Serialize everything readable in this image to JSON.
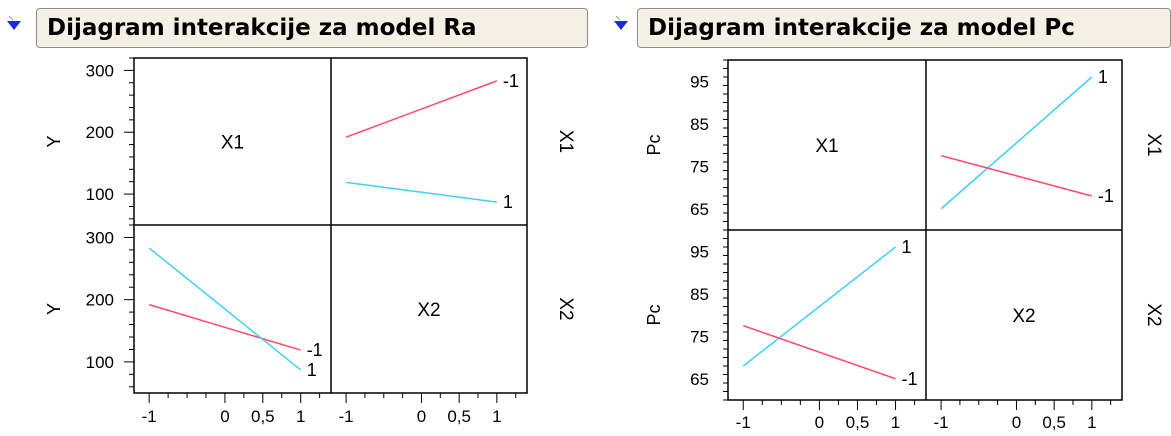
{
  "colors": {
    "red": "#ff4a6e",
    "cyan": "#3fd0ee",
    "frame": "#000000"
  },
  "icons": {
    "disclosure": "disclosure-triangle-icon"
  },
  "chart_data": [
    {
      "type": "line",
      "title": "Dijagram interakcije za model Ra",
      "factors": [
        "X1",
        "X2"
      ],
      "ylabel": "Y",
      "x_ticks": [
        "-1",
        "0",
        "0,5",
        "1"
      ],
      "x_tick_values": [
        -1,
        0,
        0.5,
        1
      ],
      "xlim": [
        -1.2,
        1.4
      ],
      "y_ticks": [
        "100",
        "200",
        "300"
      ],
      "y_tick_values": [
        100,
        200,
        300
      ],
      "ylim": [
        50,
        320
      ],
      "cells": [
        {
          "row": "X1",
          "col": "X2",
          "series": [
            {
              "name": "-1",
              "color": "red",
              "x": [
                -1,
                1
              ],
              "y": [
                192,
                283
              ]
            },
            {
              "name": "1",
              "color": "cyan",
              "x": [
                -1,
                1
              ],
              "y": [
                119,
                87
              ]
            }
          ]
        },
        {
          "row": "X2",
          "col": "X1",
          "series": [
            {
              "name": "-1",
              "color": "red",
              "x": [
                -1,
                1
              ],
              "y": [
                192,
                119
              ]
            },
            {
              "name": "1",
              "color": "cyan",
              "x": [
                -1,
                1
              ],
              "y": [
                283,
                87
              ]
            }
          ]
        }
      ]
    },
    {
      "type": "line",
      "title": "Dijagram interakcije za model Pc",
      "factors": [
        "X1",
        "X2"
      ],
      "ylabel": "Pc",
      "x_ticks": [
        "-1",
        "0",
        "0,5",
        "1"
      ],
      "x_tick_values": [
        -1,
        0,
        0.5,
        1
      ],
      "xlim": [
        -1.2,
        1.4
      ],
      "y_ticks": [
        "65",
        "75",
        "85",
        "95"
      ],
      "y_tick_values": [
        65,
        75,
        85,
        95
      ],
      "ylim": [
        60,
        100
      ],
      "cells": [
        {
          "row": "X1",
          "col": "X2",
          "series": [
            {
              "name": "1",
              "color": "cyan",
              "x": [
                -1,
                1
              ],
              "y": [
                65,
                96
              ]
            },
            {
              "name": "-1",
              "color": "red",
              "x": [
                -1,
                1
              ],
              "y": [
                77.5,
                68
              ]
            }
          ]
        },
        {
          "row": "X2",
          "col": "X1",
          "series": [
            {
              "name": "1",
              "color": "cyan",
              "x": [
                -1,
                1
              ],
              "y": [
                68,
                96
              ]
            },
            {
              "name": "-1",
              "color": "red",
              "x": [
                -1,
                1
              ],
              "y": [
                77.5,
                65
              ]
            }
          ]
        }
      ]
    }
  ]
}
